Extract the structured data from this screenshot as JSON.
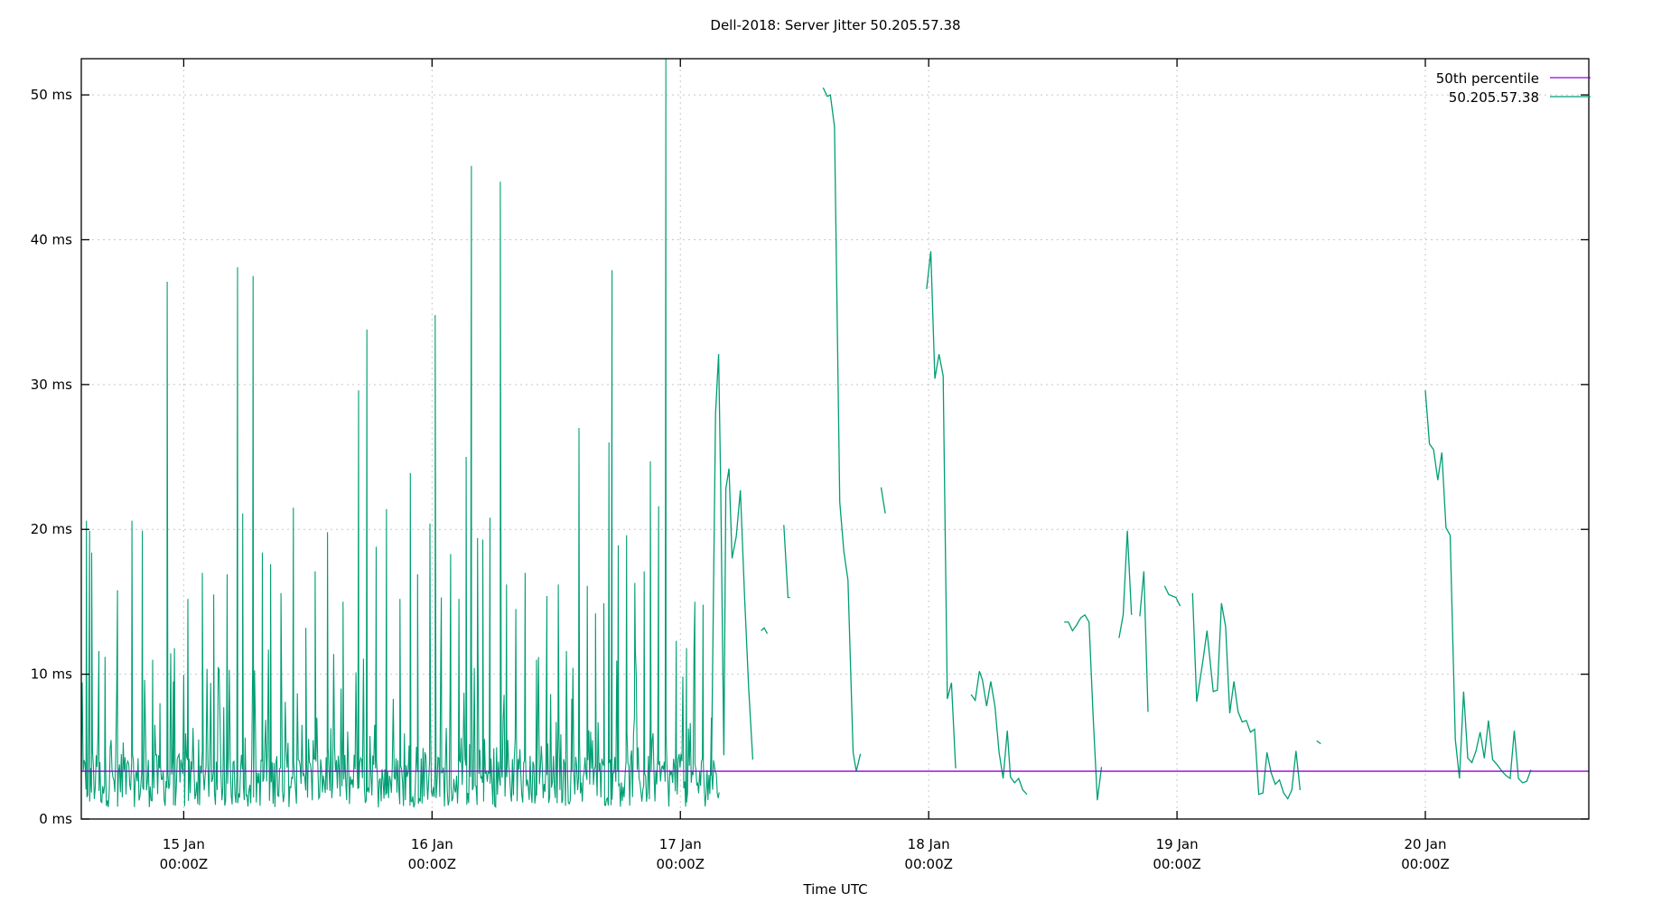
{
  "chart_data": {
    "type": "line",
    "title": "Dell-2018: Server Jitter 50.205.57.38",
    "xlabel": "Time UTC",
    "ylabel": "",
    "x_unit": "hours since 15 Jan 00:00Z",
    "xlim": [
      -9.9,
      135.8
    ],
    "ylim": [
      0,
      52.5
    ],
    "grid": true,
    "legend_position": "top-right",
    "x_ticks": [
      {
        "at": 0,
        "line1": "15 Jan",
        "line2": "00:00Z"
      },
      {
        "at": 24,
        "line1": "16 Jan",
        "line2": "00:00Z"
      },
      {
        "at": 48,
        "line1": "17 Jan",
        "line2": "00:00Z"
      },
      {
        "at": 72,
        "line1": "18 Jan",
        "line2": "00:00Z"
      },
      {
        "at": 96,
        "line1": "19 Jan",
        "line2": "00:00Z"
      },
      {
        "at": 120,
        "line1": "20 Jan",
        "line2": "00:00Z"
      }
    ],
    "y_ticks": [
      {
        "at": 0,
        "label": "0 ms"
      },
      {
        "at": 10,
        "label": "10 ms"
      },
      {
        "at": 20,
        "label": "20 ms"
      },
      {
        "at": 30,
        "label": "30 ms"
      },
      {
        "at": 40,
        "label": "40 ms"
      },
      {
        "at": 50,
        "label": "50 ms"
      }
    ],
    "series": [
      {
        "name": "50th percentile",
        "color": "#9400d3",
        "kind": "constant",
        "value": 3.3
      },
      {
        "name": "50.205.57.38",
        "color": "#009e73",
        "kind": "dense+segments",
        "dense_range": [
          -9.9,
          51.8
        ],
        "dense_baseline_range": [
          0.8,
          4.5
        ],
        "dense_spikes": [
          [
            -9.4,
            20.6
          ],
          [
            -9.1,
            19.9
          ],
          [
            -8.9,
            18.4
          ],
          [
            -8.2,
            11.6
          ],
          [
            -7.6,
            11.2
          ],
          [
            -6.4,
            15.8
          ],
          [
            -5.0,
            20.6
          ],
          [
            -4.0,
            19.9
          ],
          [
            -3.0,
            11.0
          ],
          [
            -2.3,
            8.0
          ],
          [
            -1.6,
            37.1
          ],
          [
            -1.0,
            9.5
          ],
          [
            0.4,
            15.2
          ],
          [
            1.8,
            17.0
          ],
          [
            2.9,
            15.5
          ],
          [
            4.2,
            16.9
          ],
          [
            5.2,
            38.1
          ],
          [
            5.7,
            21.1
          ],
          [
            6.7,
            37.5
          ],
          [
            7.6,
            18.4
          ],
          [
            8.4,
            17.6
          ],
          [
            9.4,
            15.6
          ],
          [
            10.6,
            21.5
          ],
          [
            11.8,
            13.2
          ],
          [
            12.7,
            17.1
          ],
          [
            13.9,
            19.8
          ],
          [
            15.4,
            15.0
          ],
          [
            16.9,
            29.6
          ],
          [
            17.7,
            33.8
          ],
          [
            18.6,
            18.8
          ],
          [
            19.6,
            21.4
          ],
          [
            20.9,
            15.2
          ],
          [
            21.9,
            23.9
          ],
          [
            22.6,
            16.9
          ],
          [
            23.8,
            20.4
          ],
          [
            24.3,
            34.8
          ],
          [
            24.9,
            15.3
          ],
          [
            25.8,
            18.3
          ],
          [
            26.6,
            15.2
          ],
          [
            27.3,
            25.0
          ],
          [
            27.8,
            45.1
          ],
          [
            28.4,
            19.4
          ],
          [
            28.9,
            19.3
          ],
          [
            29.6,
            20.8
          ],
          [
            30.6,
            44.0
          ],
          [
            31.2,
            16.2
          ],
          [
            32.1,
            14.5
          ],
          [
            33.0,
            17.0
          ],
          [
            34.1,
            11.0
          ],
          [
            35.1,
            15.4
          ],
          [
            36.2,
            16.2
          ],
          [
            37.5,
            8.3
          ],
          [
            38.2,
            27.0
          ],
          [
            39.0,
            16.1
          ],
          [
            39.8,
            14.2
          ],
          [
            40.6,
            14.9
          ],
          [
            41.1,
            26.0
          ],
          [
            41.4,
            37.9
          ],
          [
            42.0,
            18.9
          ],
          [
            42.8,
            19.6
          ],
          [
            43.6,
            16.3
          ],
          [
            44.5,
            17.1
          ],
          [
            45.1,
            24.7
          ],
          [
            45.9,
            21.6
          ],
          [
            46.6,
            52.5
          ],
          [
            47.6,
            12.3
          ],
          [
            48.6,
            11.8
          ],
          [
            49.4,
            15.0
          ],
          [
            50.2,
            14.8
          ],
          [
            51.0,
            7.0
          ]
        ],
        "segments": [
          [
            [
              51.0,
              3.0
            ],
            [
              51.4,
              28.0
            ],
            [
              51.7,
              32.1
            ],
            [
              51.9,
              23.0
            ],
            [
              52.2,
              4.4
            ],
            [
              52.4,
              22.8
            ],
            [
              52.7,
              24.2
            ],
            [
              53.0,
              18.0
            ],
            [
              53.4,
              19.5
            ],
            [
              53.8,
              22.7
            ],
            [
              54.2,
              15.4
            ],
            [
              54.6,
              9.0
            ],
            [
              55.0,
              4.1
            ]
          ],
          [
            [
              55.8,
              13.0
            ],
            [
              56.1,
              13.2
            ],
            [
              56.4,
              12.8
            ]
          ],
          [
            [
              58.0,
              20.3
            ],
            [
              58.4,
              15.3
            ],
            [
              58.6,
              15.3
            ]
          ],
          [
            [
              61.8,
              50.5
            ],
            [
              62.2,
              49.9
            ],
            [
              62.5,
              50.0
            ],
            [
              62.9,
              47.8
            ],
            [
              63.4,
              21.9
            ],
            [
              63.8,
              18.5
            ],
            [
              64.2,
              16.5
            ],
            [
              64.7,
              4.6
            ],
            [
              65.0,
              3.3
            ],
            [
              65.4,
              4.5
            ]
          ],
          [
            [
              67.4,
              22.9
            ],
            [
              67.8,
              21.1
            ]
          ],
          [
            [
              71.8,
              36.6
            ],
            [
              72.2,
              39.2
            ],
            [
              72.6,
              30.4
            ],
            [
              73.0,
              32.1
            ],
            [
              73.4,
              30.6
            ],
            [
              73.8,
              8.3
            ],
            [
              74.2,
              9.4
            ],
            [
              74.6,
              3.5
            ]
          ],
          [
            [
              76.1,
              8.6
            ],
            [
              76.5,
              8.2
            ],
            [
              76.9,
              10.2
            ],
            [
              77.2,
              9.6
            ],
            [
              77.6,
              7.8
            ],
            [
              78.0,
              9.5
            ],
            [
              78.4,
              7.8
            ],
            [
              78.8,
              4.6
            ],
            [
              79.2,
              2.8
            ],
            [
              79.6,
              6.1
            ],
            [
              79.9,
              2.9
            ],
            [
              80.3,
              2.5
            ],
            [
              80.7,
              2.8
            ],
            [
              81.1,
              2.0
            ],
            [
              81.5,
              1.7
            ]
          ],
          [
            [
              85.1,
              13.6
            ],
            [
              85.5,
              13.6
            ],
            [
              85.9,
              13.0
            ],
            [
              86.3,
              13.4
            ],
            [
              86.7,
              13.9
            ],
            [
              87.1,
              14.1
            ],
            [
              87.5,
              13.6
            ],
            [
              87.9,
              7.0
            ],
            [
              88.3,
              1.3
            ],
            [
              88.7,
              3.6
            ]
          ],
          [
            [
              90.4,
              12.5
            ],
            [
              90.8,
              14.1
            ],
            [
              91.2,
              19.9
            ],
            [
              91.6,
              14.1
            ]
          ],
          [
            [
              92.4,
              14.0
            ],
            [
              92.8,
              17.1
            ],
            [
              93.2,
              7.4
            ]
          ],
          [
            [
              94.8,
              16.1
            ],
            [
              95.2,
              15.5
            ],
            [
              95.9,
              15.3
            ],
            [
              96.3,
              14.7
            ]
          ],
          [
            [
              97.5,
              15.6
            ],
            [
              97.9,
              8.1
            ],
            [
              98.5,
              10.9
            ],
            [
              98.9,
              13.0
            ],
            [
              99.5,
              8.8
            ],
            [
              99.9,
              8.9
            ],
            [
              100.3,
              14.9
            ],
            [
              100.7,
              13.3
            ],
            [
              101.1,
              7.3
            ],
            [
              101.5,
              9.5
            ],
            [
              101.9,
              7.4
            ],
            [
              102.3,
              6.7
            ],
            [
              102.7,
              6.8
            ],
            [
              103.1,
              6.0
            ],
            [
              103.5,
              6.2
            ],
            [
              103.9,
              1.7
            ],
            [
              104.3,
              1.8
            ],
            [
              104.7,
              4.6
            ],
            [
              105.1,
              3.2
            ],
            [
              105.5,
              2.4
            ],
            [
              105.9,
              2.7
            ],
            [
              106.3,
              1.8
            ],
            [
              106.7,
              1.4
            ],
            [
              107.1,
              2.0
            ],
            [
              107.5,
              4.7
            ],
            [
              107.9,
              2.0
            ]
          ],
          [
            [
              109.5,
              5.4
            ],
            [
              109.9,
              5.2
            ]
          ],
          [
            [
              120.0,
              29.6
            ],
            [
              120.4,
              25.9
            ],
            [
              120.8,
              25.5
            ],
            [
              121.2,
              23.4
            ],
            [
              121.6,
              25.3
            ],
            [
              122.0,
              20.1
            ],
            [
              122.4,
              19.6
            ],
            [
              122.9,
              5.5
            ],
            [
              123.3,
              2.8
            ],
            [
              123.7,
              8.8
            ],
            [
              124.1,
              4.2
            ],
            [
              124.5,
              3.9
            ],
            [
              124.9,
              4.7
            ],
            [
              125.3,
              6.0
            ],
            [
              125.7,
              4.2
            ],
            [
              126.1,
              6.8
            ],
            [
              126.5,
              4.1
            ],
            [
              127.0,
              3.7
            ],
            [
              127.4,
              3.3
            ],
            [
              127.8,
              3.0
            ],
            [
              128.2,
              2.8
            ],
            [
              128.6,
              6.1
            ],
            [
              129.0,
              2.8
            ],
            [
              129.4,
              2.5
            ],
            [
              129.8,
              2.6
            ],
            [
              130.2,
              3.4
            ]
          ]
        ]
      }
    ]
  },
  "legend": {
    "items": [
      {
        "label": "50th percentile",
        "color": "#9400d3"
      },
      {
        "label": "50.205.57.38",
        "color": "#009e73"
      }
    ]
  }
}
